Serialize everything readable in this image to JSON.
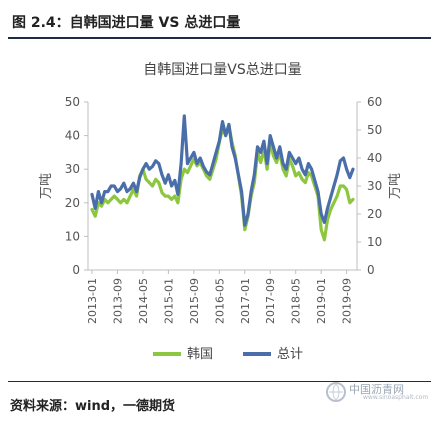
{
  "header": {
    "title": "图 2.4：自韩国进口量 VS 总进口量"
  },
  "source": {
    "text": "资料来源：wind，一德期货"
  },
  "watermark": {
    "text": "中国沥青网",
    "url": "www.sinoasphalt.com"
  },
  "colors": {
    "korea": "#8dc63f",
    "total": "#4a6ea9",
    "rule": "#1f2a44"
  },
  "chart_data": {
    "type": "line",
    "title": "自韩国进口量VS总进口量",
    "ylabel_left": "万吨",
    "ylabel_right": "万吨",
    "ylim_left": [
      0,
      50
    ],
    "ylim_right": [
      0,
      60
    ],
    "yticks_left": [
      0,
      10,
      20,
      30,
      40,
      50
    ],
    "yticks_right": [
      0,
      10,
      20,
      30,
      40,
      50,
      60
    ],
    "xtick_labels": [
      "2013-01",
      "2013-09",
      "2014-05",
      "2015-01",
      "2015-09",
      "2016-05",
      "2017-01",
      "2017-09",
      "2018-05",
      "2019-01",
      "2019-09"
    ],
    "legend": {
      "position": "bottom",
      "items": [
        "韩国",
        "总计"
      ]
    },
    "x": [
      "2013-01",
      "2013-02",
      "2013-03",
      "2013-04",
      "2013-05",
      "2013-06",
      "2013-07",
      "2013-08",
      "2013-09",
      "2013-10",
      "2013-11",
      "2013-12",
      "2014-01",
      "2014-02",
      "2014-03",
      "2014-04",
      "2014-05",
      "2014-06",
      "2014-07",
      "2014-08",
      "2014-09",
      "2014-10",
      "2014-11",
      "2014-12",
      "2015-01",
      "2015-02",
      "2015-03",
      "2015-04",
      "2015-05",
      "2015-06",
      "2015-07",
      "2015-08",
      "2015-09",
      "2015-10",
      "2015-11",
      "2015-12",
      "2016-01",
      "2016-02",
      "2016-03",
      "2016-04",
      "2016-05",
      "2016-06",
      "2016-07",
      "2016-08",
      "2016-09",
      "2016-10",
      "2016-11",
      "2016-12",
      "2017-01",
      "2017-02",
      "2017-03",
      "2017-04",
      "2017-05",
      "2017-06",
      "2017-07",
      "2017-08",
      "2017-09",
      "2017-10",
      "2017-11",
      "2017-12",
      "2018-01",
      "2018-02",
      "2018-03",
      "2018-04",
      "2018-05",
      "2018-06",
      "2018-07",
      "2018-08",
      "2018-09",
      "2018-10",
      "2018-11",
      "2018-12",
      "2019-01",
      "2019-02",
      "2019-03",
      "2019-04",
      "2019-05",
      "2019-06",
      "2019-07",
      "2019-08",
      "2019-09",
      "2019-10",
      "2019-11"
    ],
    "series": [
      {
        "name": "韩国",
        "axis": "left",
        "values": [
          18,
          16,
          20,
          19,
          21,
          20,
          21,
          22,
          21,
          20,
          21,
          20,
          22,
          24,
          22,
          28,
          30,
          27,
          26,
          25,
          27,
          26,
          23,
          22,
          22,
          21,
          22,
          20,
          27,
          30,
          29,
          31,
          33,
          31,
          32,
          30,
          28,
          27,
          30,
          33,
          38,
          42,
          40,
          43,
          38,
          34,
          28,
          22,
          12,
          16,
          22,
          26,
          35,
          32,
          36,
          30,
          38,
          34,
          32,
          35,
          30,
          28,
          33,
          31,
          28,
          29,
          27,
          26,
          29,
          28,
          25,
          22,
          12,
          9,
          15,
          18,
          20,
          22,
          25,
          25,
          24,
          20,
          21
        ]
      },
      {
        "name": "总计",
        "axis": "right",
        "values": [
          27,
          22,
          28,
          24,
          28,
          28,
          30,
          30,
          28,
          29,
          31,
          28,
          29,
          31,
          28,
          33,
          36,
          38,
          36,
          37,
          39,
          38,
          34,
          31,
          34,
          30,
          32,
          27,
          38,
          55,
          38,
          40,
          42,
          38,
          40,
          37,
          35,
          34,
          38,
          42,
          46,
          53,
          48,
          52,
          44,
          40,
          34,
          28,
          16,
          20,
          28,
          34,
          44,
          42,
          46,
          38,
          48,
          44,
          40,
          44,
          38,
          36,
          42,
          40,
          38,
          40,
          36,
          34,
          38,
          36,
          32,
          28,
          20,
          17,
          22,
          26,
          30,
          34,
          39,
          40,
          36,
          33,
          36
        ]
      }
    ]
  }
}
